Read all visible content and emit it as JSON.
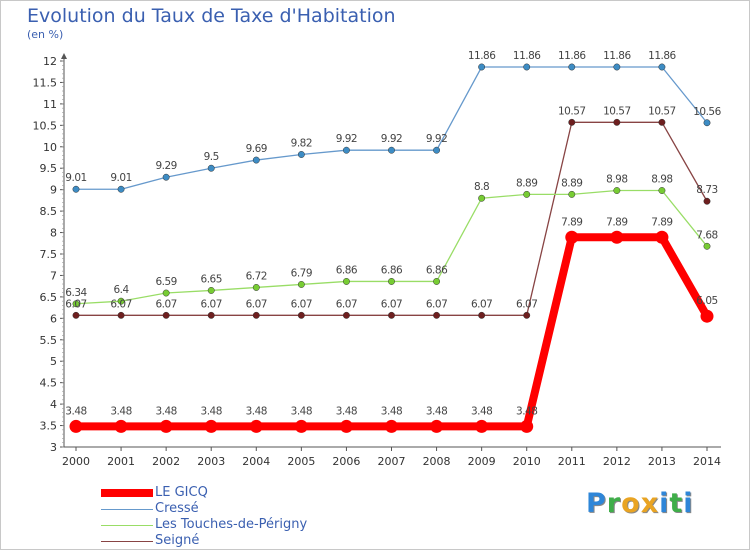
{
  "title": "Evolution du Taux de Taxe d'Habitation",
  "subtitle": "(en %)",
  "logo": {
    "text": "Proxiti",
    "letters": [
      "P",
      "r",
      "o",
      "x",
      "i",
      "t",
      "i"
    ],
    "colors": [
      "#2e86d8",
      "#3fae49",
      "#e9a423",
      "#e9a423",
      "#2e86d8",
      "#3fae49",
      "#2e86d8"
    ]
  },
  "chart_data": {
    "type": "line",
    "title": "Evolution du Taux de Taxe d'Habitation",
    "ylabel": "(en %)",
    "xlabel": "",
    "ylim": [
      3,
      12
    ],
    "yticks": [
      3,
      3.5,
      4,
      4.5,
      5,
      5.5,
      6,
      6.5,
      7,
      7.5,
      8,
      8.5,
      9,
      9.5,
      10,
      10.5,
      11,
      11.5,
      12
    ],
    "grid": false,
    "x": [
      "2000",
      "2001",
      "2002",
      "2003",
      "2004",
      "2005",
      "2006",
      "2007",
      "2008",
      "2009",
      "2010",
      "2011",
      "2012",
      "2013",
      "2014"
    ],
    "series": [
      {
        "name": "LE GICQ",
        "color": "#ff0000",
        "bold": true,
        "values": [
          3.48,
          3.48,
          3.48,
          3.48,
          3.48,
          3.48,
          3.48,
          3.48,
          3.48,
          3.48,
          3.48,
          7.89,
          7.89,
          7.89,
          6.05
        ],
        "labels": [
          "3.48",
          "3.48",
          "3.48",
          "3.48",
          "3.48",
          "3.48",
          "3.48",
          "3.48",
          "3.48",
          "3.48",
          "3.48",
          "7.89",
          "7.89",
          "7.89",
          "6.05"
        ]
      },
      {
        "name": "Cressé",
        "color": "#6699cc",
        "point_color": "#3d8cc4",
        "values": [
          9.01,
          9.01,
          9.29,
          9.5,
          9.69,
          9.82,
          9.92,
          9.92,
          9.92,
          11.86,
          11.86,
          11.86,
          11.86,
          11.86,
          10.56
        ],
        "labels": [
          "9.01",
          "9.01",
          "9.29",
          "9.5",
          "9.69",
          "9.82",
          "9.92",
          "9.92",
          "9.92",
          "11.86",
          "11.86",
          "11.86",
          "11.86",
          "11.86",
          "10.56"
        ]
      },
      {
        "name": "Les Touches-de-Périgny",
        "color": "#99dd66",
        "point_color": "#77cc33",
        "values": [
          6.34,
          6.4,
          6.59,
          6.65,
          6.72,
          6.79,
          6.86,
          6.86,
          6.86,
          8.8,
          8.89,
          8.89,
          8.98,
          8.98,
          7.68
        ],
        "labels": [
          "6.34",
          "6.4",
          "6.59",
          "6.65",
          "6.72",
          "6.79",
          "6.86",
          "6.86",
          "6.86",
          "8.8",
          "8.89",
          "8.89",
          "8.98",
          "8.98",
          "7.68"
        ]
      },
      {
        "name": "Seigné",
        "color": "#884444",
        "point_color": "#6e1f1f",
        "values": [
          6.07,
          6.07,
          6.07,
          6.07,
          6.07,
          6.07,
          6.07,
          6.07,
          6.07,
          6.07,
          6.07,
          10.57,
          10.57,
          10.57,
          8.73
        ],
        "labels": [
          "6.07",
          "6.07",
          "6.07",
          "6.07",
          "6.07",
          "6.07",
          "6.07",
          "6.07",
          "6.07",
          "6.07",
          "6.07",
          "10.57",
          "10.57",
          "10.57",
          "8.73"
        ]
      }
    ],
    "legend": "bottom-left"
  }
}
